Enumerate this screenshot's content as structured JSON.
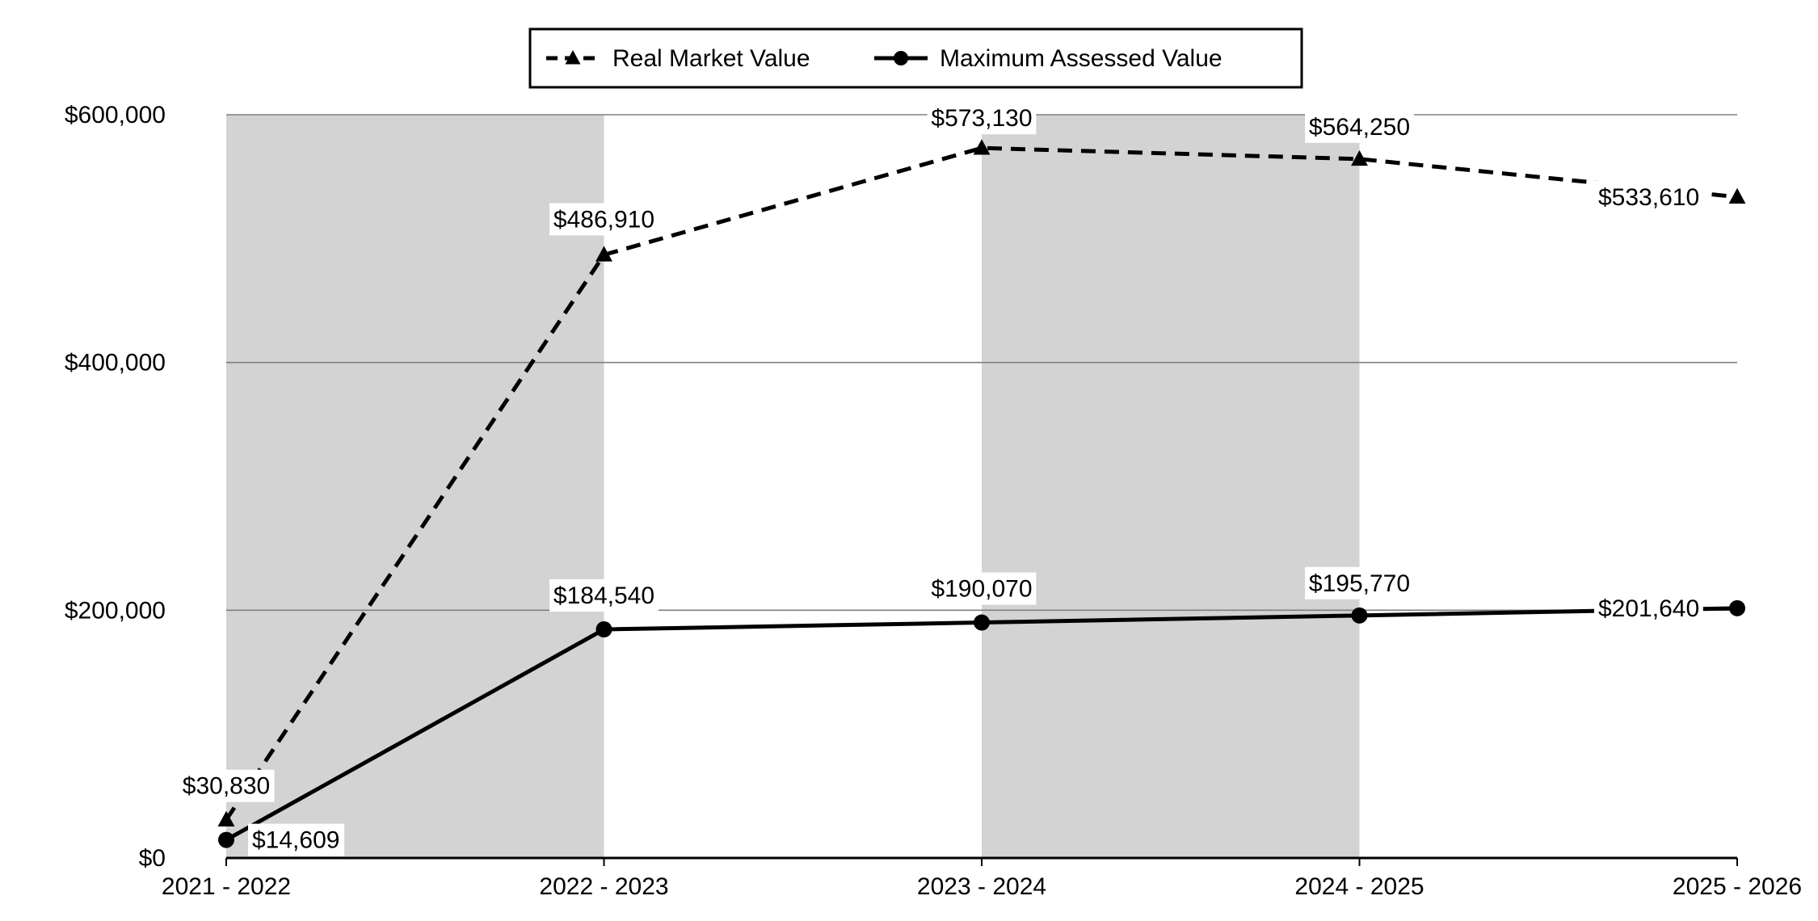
{
  "chart_data": {
    "type": "line",
    "title": "",
    "xlabel": "",
    "ylabel": "",
    "categories": [
      "2021 - 2022",
      "2022 - 2023",
      "2023 - 2024",
      "2024 - 2025",
      "2025 - 2026"
    ],
    "ylim": [
      0,
      600000
    ],
    "y_ticks": [
      0,
      200000,
      400000,
      600000
    ],
    "y_tick_labels": [
      "$0",
      "$200,000",
      "$400,000",
      "$600,000"
    ],
    "grid": true,
    "shaded_bands": [
      "2021 - 2022",
      "2023 - 2024"
    ],
    "legend_position": "top-center",
    "series": [
      {
        "name": "Real Market Value",
        "style": "dashed",
        "marker": "triangle",
        "values": [
          30830,
          486910,
          573130,
          564250,
          533610
        ],
        "labels": [
          "$30,830",
          "$486,910",
          "$573,130",
          "$564,250",
          "$533,610"
        ]
      },
      {
        "name": "Maximum Assessed Value",
        "style": "solid",
        "marker": "circle",
        "values": [
          14609,
          184540,
          190070,
          195770,
          201640
        ],
        "labels": [
          "$14,609",
          "$184,540",
          "$190,070",
          "$195,770",
          "$201,640"
        ]
      }
    ],
    "colors": {
      "line": "#000000",
      "band": "#d3d3d3",
      "grid": "#808080"
    }
  }
}
